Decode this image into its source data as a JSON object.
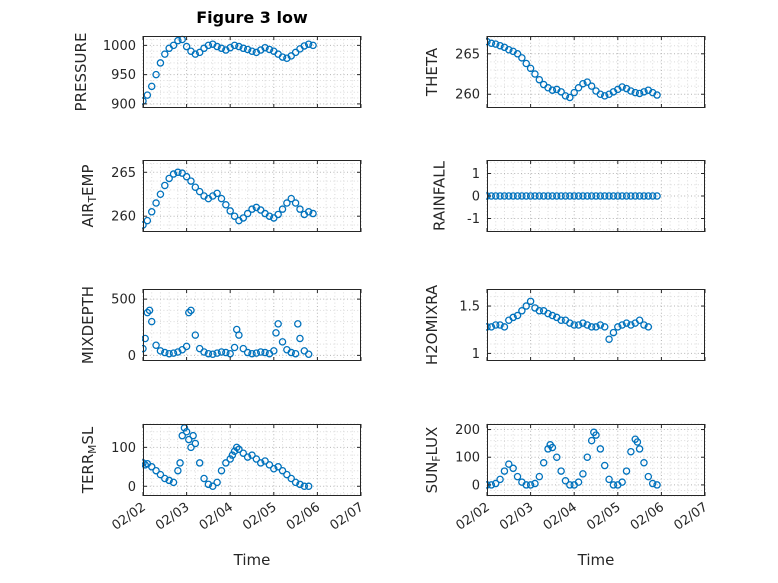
{
  "figure": {
    "title": "Figure 3 low",
    "xlabel": "Time"
  },
  "colors": {
    "marker": "#0072BD",
    "axis": "#262626",
    "grid": "#b5b5b5",
    "grid_minor": "#dadada"
  },
  "xaxis": {
    "min": 2,
    "max": 7,
    "minor_step": 0.2,
    "ticks": [
      2,
      3,
      4,
      5,
      6,
      7
    ],
    "tick_labels": [
      "02/02",
      "02/03",
      "02/04",
      "02/05",
      "02/06",
      "02/07"
    ]
  },
  "chart_data": [
    {
      "name": "PRESSURE",
      "type": "scatter",
      "ylabel": {
        "pre": "PRESSURE",
        "sub": "",
        "post": ""
      },
      "ylim": [
        893,
        1016
      ],
      "yticks": [
        900,
        950,
        1000
      ],
      "ytick_labels": [
        "900",
        "950",
        "1000"
      ],
      "yminor": 10,
      "x": [
        2,
        2.1,
        2.2,
        2.3,
        2.4,
        2.5,
        2.6,
        2.7,
        2.8,
        2.9,
        3,
        3.1,
        3.2,
        3.3,
        3.4,
        3.5,
        3.6,
        3.7,
        3.8,
        3.9,
        4,
        4.1,
        4.2,
        4.3,
        4.4,
        4.5,
        4.6,
        4.7,
        4.8,
        4.9,
        5,
        5.1,
        5.2,
        5.3,
        5.4,
        5.5,
        5.6,
        5.7,
        5.8,
        5.9
      ],
      "y": [
        905,
        915,
        930,
        950,
        970,
        985,
        995,
        1000,
        1008,
        1010,
        998,
        990,
        985,
        988,
        995,
        1000,
        1002,
        998,
        995,
        992,
        996,
        1000,
        998,
        995,
        993,
        990,
        988,
        992,
        996,
        993,
        990,
        985,
        980,
        978,
        982,
        988,
        994,
        999,
        1002,
        1000
      ]
    },
    {
      "name": "THETA",
      "type": "scatter",
      "ylabel": {
        "pre": "THETA",
        "sub": "",
        "post": ""
      },
      "ylim": [
        258.3,
        267.2
      ],
      "yticks": [
        260,
        265
      ],
      "ytick_labels": [
        "260",
        "265"
      ],
      "yminor": 1,
      "x": [
        2,
        2.1,
        2.2,
        2.3,
        2.4,
        2.5,
        2.6,
        2.7,
        2.8,
        2.9,
        3,
        3.1,
        3.2,
        3.3,
        3.4,
        3.5,
        3.6,
        3.7,
        3.8,
        3.9,
        4,
        4.1,
        4.2,
        4.3,
        4.4,
        4.5,
        4.6,
        4.7,
        4.8,
        4.9,
        5,
        5.1,
        5.2,
        5.3,
        5.4,
        5.5,
        5.6,
        5.7,
        5.8,
        5.9
      ],
      "y": [
        266.5,
        266.3,
        266.2,
        266,
        265.8,
        265.5,
        265.3,
        265,
        264.5,
        263.8,
        263.2,
        262.5,
        261.8,
        261.2,
        260.8,
        260.5,
        260.6,
        260.3,
        259.8,
        259.6,
        260.2,
        260.8,
        261.3,
        261.5,
        261,
        260.4,
        260,
        259.8,
        260,
        260.3,
        260.6,
        260.9,
        260.7,
        260.4,
        260.2,
        260.1,
        260.3,
        260.5,
        260.2,
        259.9
      ]
    },
    {
      "name": "AIR_TEMP",
      "type": "scatter",
      "ylabel": {
        "pre": "AIR",
        "sub": "T",
        "post": "EMP"
      },
      "ylim": [
        258.2,
        266.4
      ],
      "yticks": [
        260,
        265
      ],
      "ytick_labels": [
        "260",
        "265"
      ],
      "yminor": 1,
      "x": [
        2,
        2.1,
        2.2,
        2.3,
        2.4,
        2.5,
        2.6,
        2.7,
        2.8,
        2.9,
        3,
        3.1,
        3.2,
        3.3,
        3.4,
        3.5,
        3.6,
        3.7,
        3.8,
        3.9,
        4,
        4.1,
        4.2,
        4.3,
        4.4,
        4.5,
        4.6,
        4.7,
        4.8,
        4.9,
        5,
        5.1,
        5.2,
        5.3,
        5.4,
        5.5,
        5.6,
        5.7,
        5.8,
        5.9
      ],
      "y": [
        259,
        259.5,
        260.5,
        261.5,
        262.5,
        263.5,
        264.3,
        264.8,
        265,
        264.9,
        264.5,
        264,
        263.3,
        262.8,
        262.3,
        262,
        262.3,
        262.6,
        262,
        261.3,
        260.6,
        260,
        259.5,
        259.8,
        260.3,
        260.8,
        261,
        260.7,
        260.3,
        260,
        259.8,
        260.2,
        260.8,
        261.5,
        262,
        261.5,
        260.8,
        260.2,
        260.5,
        260.3
      ]
    },
    {
      "name": "RAINFALL",
      "type": "scatter",
      "ylabel": {
        "pre": "RAINFALL",
        "sub": "",
        "post": ""
      },
      "ylim": [
        -1.6,
        1.6
      ],
      "yticks": [
        -1,
        0,
        1
      ],
      "ytick_labels": [
        "-1",
        "0",
        "1"
      ],
      "yminor": 0.5,
      "x": [
        2,
        2.1,
        2.2,
        2.3,
        2.4,
        2.5,
        2.6,
        2.7,
        2.8,
        2.9,
        3,
        3.1,
        3.2,
        3.3,
        3.4,
        3.5,
        3.6,
        3.7,
        3.8,
        3.9,
        4,
        4.1,
        4.2,
        4.3,
        4.4,
        4.5,
        4.6,
        4.7,
        4.8,
        4.9,
        5,
        5.1,
        5.2,
        5.3,
        5.4,
        5.5,
        5.6,
        5.7,
        5.8,
        5.9
      ],
      "y": [
        0,
        0,
        0,
        0,
        0,
        0,
        0,
        0,
        0,
        0,
        0,
        0,
        0,
        0,
        0,
        0,
        0,
        0,
        0,
        0,
        0,
        0,
        0,
        0,
        0,
        0,
        0,
        0,
        0,
        0,
        0,
        0,
        0,
        0,
        0,
        0,
        0,
        0,
        0,
        0
      ]
    },
    {
      "name": "MIXDEPTH",
      "type": "scatter",
      "ylabel": {
        "pre": "MIXDEPTH",
        "sub": "",
        "post": ""
      },
      "ylim": [
        -50,
        590
      ],
      "yticks": [
        0,
        500
      ],
      "ytick_labels": [
        "0",
        "500"
      ],
      "yminor": 100,
      "x": [
        2,
        2.05,
        2.1,
        2.15,
        2.2,
        2.3,
        2.4,
        2.5,
        2.6,
        2.7,
        2.8,
        2.9,
        3,
        3.05,
        3.1,
        3.2,
        3.3,
        3.4,
        3.5,
        3.6,
        3.7,
        3.8,
        3.9,
        4,
        4.1,
        4.15,
        4.2,
        4.3,
        4.4,
        4.5,
        4.6,
        4.7,
        4.8,
        4.9,
        5,
        5.05,
        5.1,
        5.2,
        5.3,
        5.4,
        5.5,
        5.55,
        5.6,
        5.7,
        5.8
      ],
      "y": [
        60,
        150,
        380,
        400,
        300,
        90,
        40,
        25,
        15,
        20,
        30,
        50,
        80,
        380,
        400,
        180,
        60,
        30,
        15,
        10,
        20,
        30,
        25,
        15,
        70,
        230,
        180,
        60,
        25,
        15,
        20,
        30,
        25,
        15,
        40,
        200,
        280,
        120,
        50,
        25,
        15,
        280,
        150,
        40,
        10
      ]
    },
    {
      "name": "H2OMIXRA",
      "type": "scatter",
      "ylabel": {
        "pre": "H2OMIXRA",
        "sub": "",
        "post": ""
      },
      "ylim": [
        0.92,
        1.68
      ],
      "yticks": [
        1,
        1.5
      ],
      "ytick_labels": [
        "1",
        "1.5"
      ],
      "yminor": 0.1,
      "x": [
        2,
        2.1,
        2.2,
        2.3,
        2.4,
        2.5,
        2.6,
        2.7,
        2.8,
        2.9,
        3,
        3.1,
        3.2,
        3.3,
        3.4,
        3.5,
        3.6,
        3.7,
        3.8,
        3.9,
        4,
        4.1,
        4.2,
        4.3,
        4.4,
        4.5,
        4.6,
        4.7,
        4.8,
        4.9,
        5,
        5.1,
        5.2,
        5.3,
        5.4,
        5.5,
        5.6,
        5.7
      ],
      "y": [
        1.28,
        1.28,
        1.3,
        1.3,
        1.28,
        1.35,
        1.38,
        1.4,
        1.45,
        1.5,
        1.55,
        1.48,
        1.45,
        1.45,
        1.42,
        1.4,
        1.38,
        1.35,
        1.35,
        1.32,
        1.3,
        1.3,
        1.32,
        1.3,
        1.28,
        1.28,
        1.3,
        1.28,
        1.15,
        1.22,
        1.28,
        1.3,
        1.32,
        1.3,
        1.32,
        1.35,
        1.3,
        1.28
      ]
    },
    {
      "name": "TERR_MSL",
      "type": "scatter",
      "ylabel": {
        "pre": "TERR",
        "sub": "M",
        "post": "SL"
      },
      "ylim": [
        -25,
        160
      ],
      "yticks": [
        0,
        100
      ],
      "ytick_labels": [
        "0",
        "100"
      ],
      "yminor": 20,
      "x": [
        2,
        2.05,
        2.1,
        2.2,
        2.3,
        2.4,
        2.5,
        2.6,
        2.7,
        2.8,
        2.85,
        2.9,
        2.95,
        3,
        3.05,
        3.1,
        3.15,
        3.2,
        3.3,
        3.4,
        3.5,
        3.6,
        3.7,
        3.8,
        3.9,
        4,
        4.05,
        4.1,
        4.15,
        4.2,
        4.3,
        4.4,
        4.5,
        4.6,
        4.7,
        4.8,
        4.9,
        5,
        5.1,
        5.2,
        5.3,
        5.4,
        5.5,
        5.6,
        5.7,
        5.8
      ],
      "y": [
        60,
        55,
        58,
        50,
        40,
        30,
        20,
        15,
        10,
        40,
        60,
        130,
        150,
        140,
        120,
        100,
        130,
        110,
        60,
        20,
        5,
        0,
        10,
        40,
        60,
        70,
        80,
        90,
        100,
        95,
        85,
        75,
        80,
        70,
        60,
        65,
        55,
        45,
        50,
        40,
        30,
        20,
        10,
        5,
        0,
        0
      ]
    },
    {
      "name": "SUN_FLUX",
      "type": "scatter",
      "ylabel": {
        "pre": "SUN",
        "sub": "F",
        "post": "LUX"
      },
      "ylim": [
        -40,
        220
      ],
      "yticks": [
        0,
        100,
        200
      ],
      "ytick_labels": [
        "0",
        "100",
        "200"
      ],
      "yminor": 20,
      "x": [
        2,
        2.1,
        2.2,
        2.3,
        2.4,
        2.5,
        2.6,
        2.7,
        2.8,
        2.9,
        3,
        3.1,
        3.2,
        3.3,
        3.4,
        3.45,
        3.5,
        3.6,
        3.7,
        3.8,
        3.9,
        4,
        4.1,
        4.2,
        4.3,
        4.4,
        4.45,
        4.5,
        4.6,
        4.7,
        4.8,
        4.9,
        5,
        5.1,
        5.2,
        5.3,
        5.4,
        5.45,
        5.5,
        5.6,
        5.7,
        5.8,
        5.9
      ],
      "y": [
        0,
        0,
        5,
        20,
        50,
        75,
        60,
        30,
        10,
        0,
        0,
        5,
        30,
        80,
        130,
        145,
        135,
        100,
        50,
        15,
        0,
        0,
        10,
        40,
        100,
        160,
        190,
        180,
        130,
        70,
        20,
        0,
        0,
        10,
        50,
        120,
        165,
        155,
        130,
        80,
        30,
        5,
        0
      ]
    }
  ]
}
